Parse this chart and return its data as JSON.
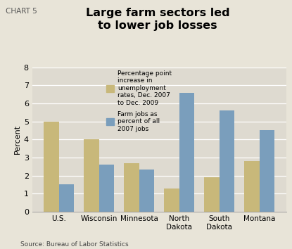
{
  "title": "Large farm sectors led\nto lower job losses",
  "chart_label": "CHART 5",
  "categories": [
    "U.S.",
    "Wisconsin",
    "Minnesota",
    "North\nDakota",
    "South\nDakota",
    "Montana"
  ],
  "unemployment_increase": [
    5.0,
    4.0,
    2.7,
    1.3,
    1.9,
    2.8
  ],
  "farm_jobs_pct": [
    1.5,
    2.6,
    2.35,
    6.6,
    5.6,
    4.5
  ],
  "bar_color_tan": "#C8B87A",
  "bar_color_blue": "#7A9EBC",
  "background_color": "#E8E4D8",
  "plot_bg_color": "#DEDAD0",
  "ylabel": "Percent",
  "ylim": [
    0,
    8
  ],
  "yticks": [
    0,
    1,
    2,
    3,
    4,
    5,
    6,
    7,
    8
  ],
  "legend_label1": "Percentage point\nincrease in\nunemployment\nrates, Dec. 2007\nto Dec. 2009",
  "legend_label2": "Farm jobs as\npercent of all\n2007 jobs",
  "source_text": "Source: Bureau of Labor Statistics"
}
